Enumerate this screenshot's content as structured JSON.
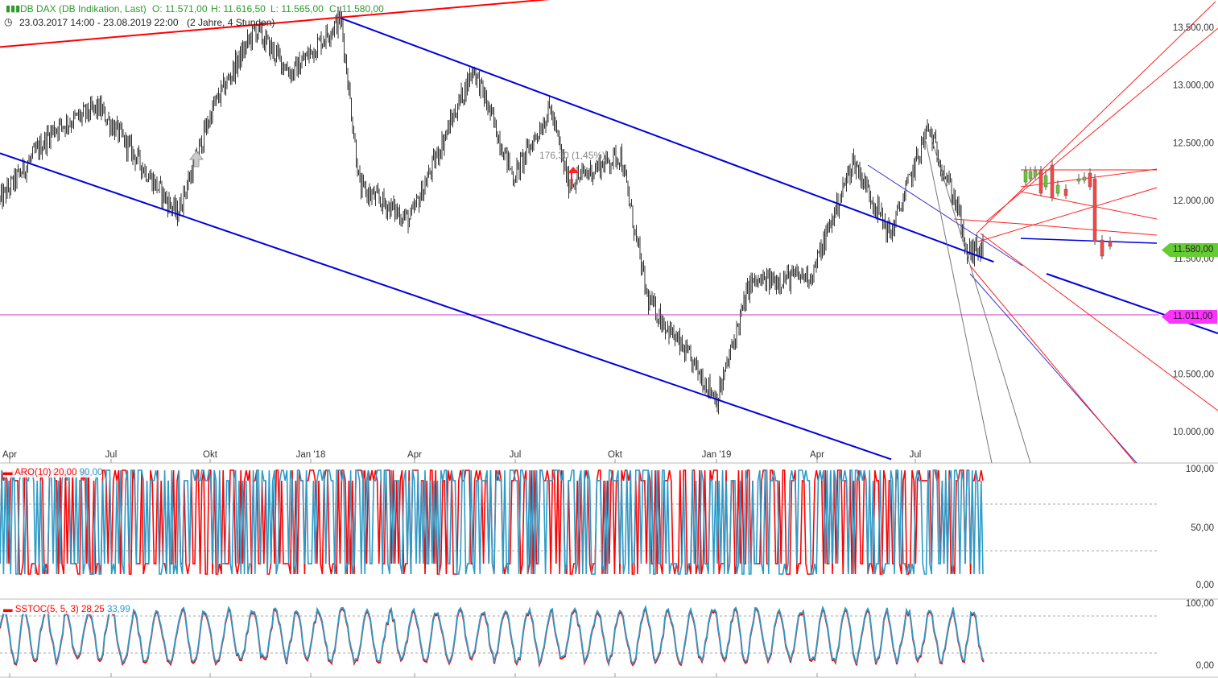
{
  "header": {
    "instrument": "DB DAX (DB Indikation, Last)",
    "open": "O: 11.571,00",
    "high": "H: 11.616,50",
    "low": "L: 11.565,00",
    "close": "C: 11.580,00",
    "period": "23.03.2017 14:00 - 23.08.2019 22:00",
    "interval": "(2 Jahre, 4 Stunden)"
  },
  "annotation": "176,30 (1,45%)",
  "price_tags": {
    "last": {
      "label": "11.580,00",
      "color": "#66cc33"
    },
    "level": {
      "label": "11.011,00",
      "color": "#ff33ff"
    }
  },
  "indicators": {
    "aroon": {
      "name": "ARO(10)",
      "up": "20,00",
      "down": "90,00",
      "up_color": "#ff0000",
      "down_color": "#2b9bc8"
    },
    "sstoc": {
      "name": "SSTOC(5, 5, 3)",
      "k": "28,25",
      "d": "33,99",
      "k_color": "#ff0000",
      "d_color": "#2b9bc8"
    }
  },
  "chart_data": {
    "type": "candlestick",
    "title": "DB DAX (DB Indikation, Last)",
    "y_axis_ticks": [
      "13.500,00",
      "13.000,00",
      "12.500,00",
      "12.000,00",
      "11.500,00",
      "10.500,00",
      "10.000,00"
    ],
    "ylim": [
      9990,
      13580
    ],
    "x_axis_ticks": [
      "Apr",
      "Jul",
      "Okt",
      "Jan '18",
      "Apr",
      "Jul",
      "Okt",
      "Jan '19",
      "Apr",
      "Jul"
    ],
    "close_path": [
      {
        "d": "2017-03-23",
        "c": 12000
      },
      {
        "d": "2017-05-10",
        "c": 12620
      },
      {
        "d": "2017-06-20",
        "c": 12800
      },
      {
        "d": "2017-07-10",
        "c": 12550
      },
      {
        "d": "2017-08-29",
        "c": 11880
      },
      {
        "d": "2017-09-30",
        "c": 12800
      },
      {
        "d": "2017-11-07",
        "c": 13480
      },
      {
        "d": "2017-12-10",
        "c": 13100
      },
      {
        "d": "2018-01-23",
        "c": 13580
      },
      {
        "d": "2018-02-09",
        "c": 12110
      },
      {
        "d": "2018-03-26",
        "c": 11830
      },
      {
        "d": "2018-05-22",
        "c": 13150
      },
      {
        "d": "2018-06-27",
        "c": 12200
      },
      {
        "d": "2018-07-30",
        "c": 12800
      },
      {
        "d": "2018-08-15",
        "c": 12150
      },
      {
        "d": "2018-10-01",
        "c": 12400
      },
      {
        "d": "2018-10-25",
        "c": 11150
      },
      {
        "d": "2018-12-27",
        "c": 10280
      },
      {
        "d": "2019-01-25",
        "c": 11280
      },
      {
        "d": "2019-03-22",
        "c": 11360
      },
      {
        "d": "2019-04-28",
        "c": 12350
      },
      {
        "d": "2019-05-31",
        "c": 11700
      },
      {
        "d": "2019-07-04",
        "c": 12630
      },
      {
        "d": "2019-08-01",
        "c": 11900
      },
      {
        "d": "2019-08-06",
        "c": 11550
      },
      {
        "d": "2019-08-23",
        "c": 11580
      }
    ],
    "level_line": 11011,
    "trendlines": [
      {
        "color": "#ff0000",
        "from": {
          "d": "2017-03-23",
          "v": 13330
        },
        "to": {
          "d": "2018-08-06",
          "v": 13750
        }
      },
      {
        "color": "#0000dd",
        "from": {
          "d": "2018-01-23",
          "v": 13580
        },
        "to": {
          "d": "2019-09-01",
          "v": 11470
        }
      },
      {
        "color": "#0000dd",
        "from": {
          "d": "2017-03-23",
          "v": 12410
        },
        "to": {
          "d": "2019-06-01",
          "v": 9760
        }
      }
    ],
    "indicator_scale": {
      "aroon": [
        "100,00",
        "50,00",
        "0,00"
      ],
      "sstoc": [
        "100,00",
        "0,00"
      ]
    }
  }
}
